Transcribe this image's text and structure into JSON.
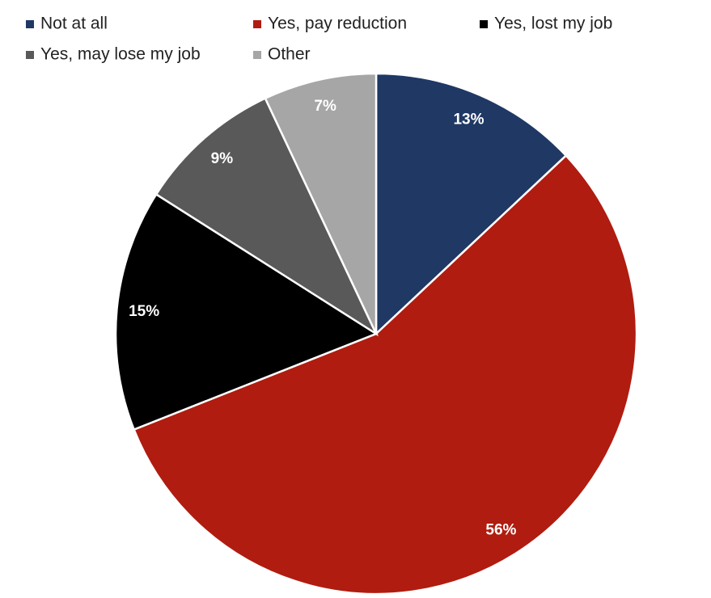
{
  "chart_data": {
    "type": "pie",
    "categories": [
      "Not at all",
      "Yes, pay reduction",
      "Yes, lost my job",
      "Yes, may lose my job",
      "Other"
    ],
    "values": [
      13,
      56,
      15,
      9,
      7
    ],
    "value_labels": [
      "13%",
      "56%",
      "15%",
      "9%",
      "7%"
    ],
    "colors": [
      "#1f3864",
      "#b01c10",
      "#000000",
      "#595959",
      "#a6a6a6"
    ],
    "legend": "top"
  }
}
